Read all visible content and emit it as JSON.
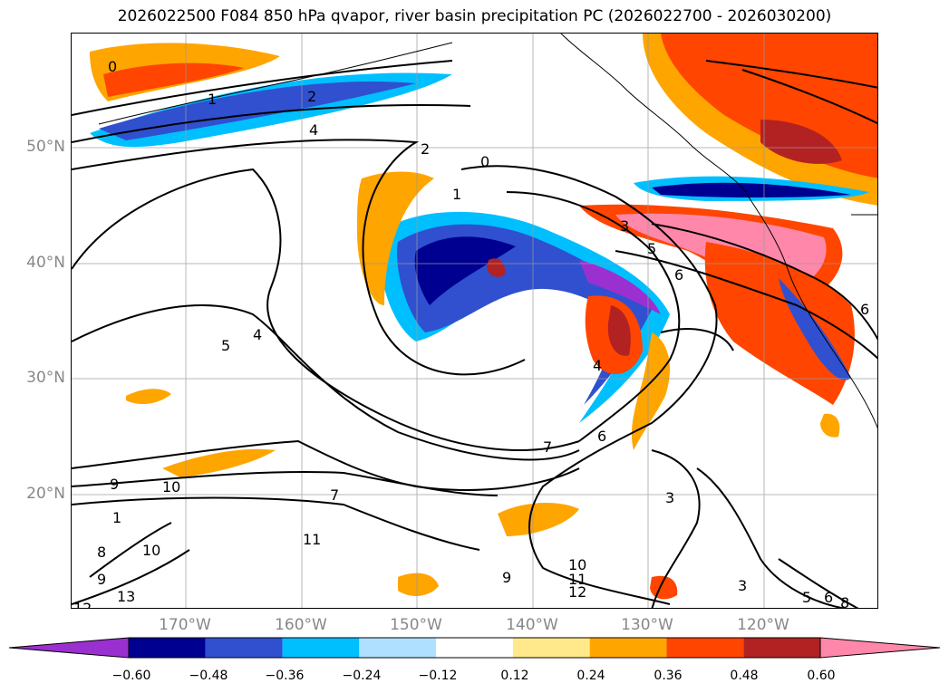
{
  "title": "2026022500 F084 850 hPa qvapor, river basin precipitation PC (2026022700 - 2026030200)",
  "map": {
    "lon_range": [
      -180,
      -110
    ],
    "lat_range": [
      10,
      60
    ],
    "lat_ticks": [
      {
        "value": 50,
        "label": "50°N"
      },
      {
        "value": 40,
        "label": "40°N"
      },
      {
        "value": 30,
        "label": "30°N"
      },
      {
        "value": 20,
        "label": "20°N"
      }
    ],
    "lon_ticks": [
      {
        "value": -170,
        "label": "170°W"
      },
      {
        "value": -160,
        "label": "160°W"
      },
      {
        "value": -150,
        "label": "150°W"
      },
      {
        "value": -140,
        "label": "140°W"
      },
      {
        "value": -130,
        "label": "130°W"
      },
      {
        "value": -120,
        "label": "120°W"
      }
    ],
    "grid": true,
    "contour_labels": [
      "0",
      "1",
      "2",
      "4",
      "0",
      "2",
      "1",
      "3",
      "5",
      "6",
      "4",
      "5",
      "9",
      "10",
      "1",
      "8",
      "10",
      "9",
      "13",
      "12",
      "11",
      "7",
      "6",
      "7",
      "3",
      "9",
      "10",
      "11",
      "12",
      "3",
      "5",
      "6",
      "8",
      "6",
      "4"
    ]
  },
  "colorbar": {
    "colors": [
      "#9b30d0",
      "#000090",
      "#3050d0",
      "#00bfff",
      "#b0e0ff",
      "#ffffff",
      "#ffe98a",
      "#ffa500",
      "#ff4500",
      "#b22222",
      "#ff88aa"
    ],
    "ticks": [
      "−0.60",
      "−0.48",
      "−0.36",
      "−0.24",
      "−0.12",
      "0.12",
      "0.24",
      "0.36",
      "0.48",
      "0.60"
    ]
  }
}
